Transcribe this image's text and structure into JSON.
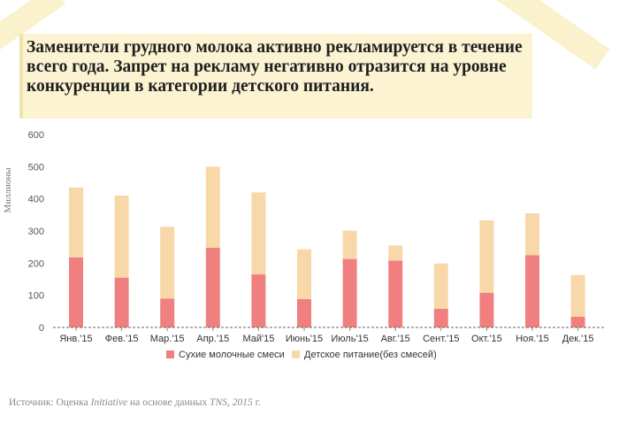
{
  "title": "Заменители грудного молока активно рекламируется в течение всего года. Запрет на рекламу негативно отразится на уровне конкуренции в категории детского питания.",
  "source": {
    "prefix": "Источник: Оценка ",
    "agency": "Initiative",
    "middle": " на основе данных ",
    "data_source": "TNS, 2015",
    "suffix": " г."
  },
  "chart_data": {
    "type": "bar",
    "stacked": true,
    "categories": [
      "Янв.'15",
      "Фев.'15",
      "Мар.'15",
      "Апр.'15",
      "Май'15",
      "Июнь'15",
      "Июль'15",
      "Авг.'15",
      "Сент.'15",
      "Окт.'15",
      "Ноя.'15",
      "Дек.'15"
    ],
    "series": [
      {
        "name": "Сухие молочные смеси",
        "color": "#f08080",
        "values": [
          218,
          155,
          90,
          248,
          165,
          88,
          213,
          208,
          58,
          108,
          225,
          33
        ]
      },
      {
        "name": "Детское питание(без смесей)",
        "color": "#f8d8a8",
        "values": [
          217,
          255,
          223,
          252,
          255,
          155,
          88,
          47,
          141,
          225,
          130,
          130
        ]
      }
    ],
    "ylabel": "Миллионы",
    "yticks": [
      0,
      100,
      200,
      300,
      400,
      500,
      600
    ],
    "ylim": [
      0,
      600
    ],
    "legend": "bottom",
    "grid": false
  }
}
